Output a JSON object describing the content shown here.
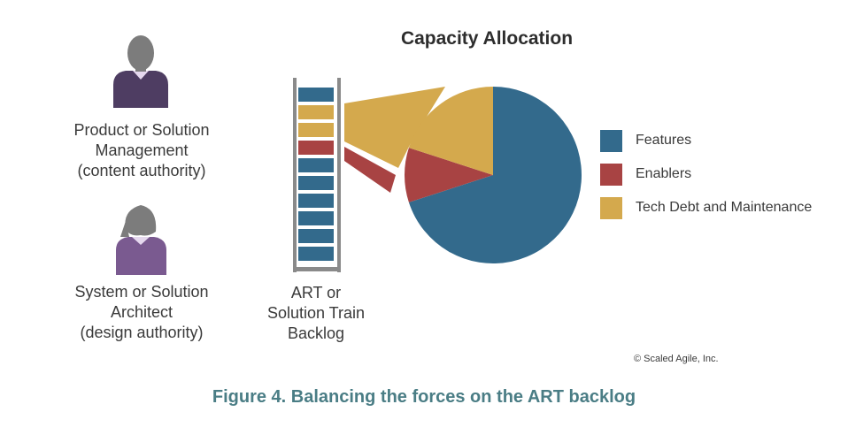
{
  "diagram": {
    "title": "Capacity Allocation",
    "roles": [
      {
        "lines": [
          "Product or Solution",
          "Management",
          "(content authority)"
        ],
        "figure": "male-person-icon"
      },
      {
        "lines": [
          "System or Solution",
          "Architect",
          "(design authority)"
        ],
        "figure": "female-person-icon"
      }
    ],
    "backlog": {
      "label_lines": [
        "ART or",
        "Solution Train",
        "Backlog"
      ],
      "items": [
        "features",
        "tech_debt",
        "tech_debt",
        "enablers",
        "features",
        "features",
        "features",
        "features",
        "features",
        "features"
      ]
    },
    "legend": [
      {
        "label": "Features",
        "key": "features"
      },
      {
        "label": "Enablers",
        "key": "enablers"
      },
      {
        "label": "Tech Debt and Maintenance",
        "key": "tech_debt"
      }
    ],
    "colors": {
      "features": "#336a8c",
      "enablers": "#a84343",
      "tech_debt": "#d4a94d",
      "male_body": "#4e3d62",
      "female_body": "#7a5a90",
      "head": "#7c7c7c",
      "collar": "#e5d8ee"
    },
    "copyright": "© Scaled Agile, Inc.",
    "caption": "Figure 4. Balancing the forces on the ART backlog"
  },
  "chart_data": {
    "type": "pie",
    "slices": [
      {
        "name": "Features",
        "value": 70
      },
      {
        "name": "Enablers",
        "value": 10
      },
      {
        "name": "Tech Debt and Maintenance",
        "value": 20
      }
    ]
  }
}
